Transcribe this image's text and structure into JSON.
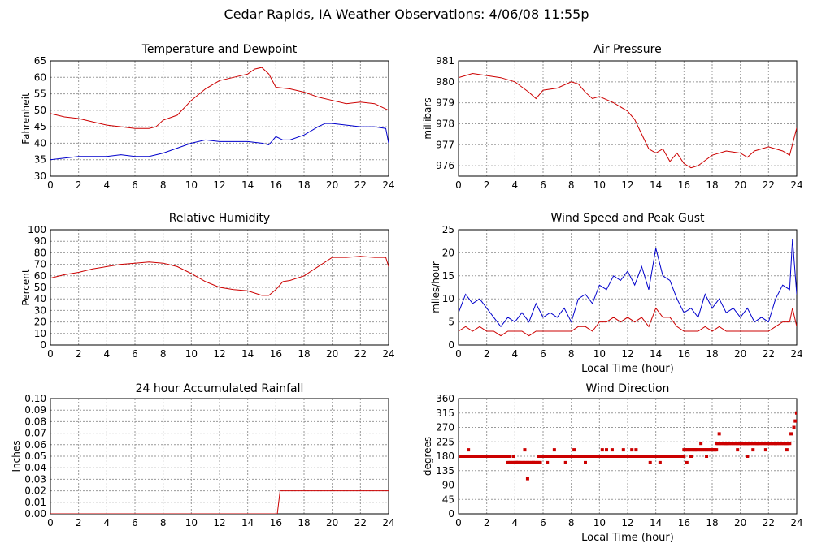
{
  "title": "Cedar Rapids, IA Weather Observations: 4/06/08 11:55p",
  "colors": {
    "red": "#cc0000",
    "blue": "#0000cc",
    "grid": "#999999"
  },
  "chart_data": [
    {
      "id": "temp",
      "type": "line",
      "title": "Temperature and Dewpoint",
      "xlabel": "",
      "ylabel": "Fahrenheit",
      "xlim": [
        0,
        24
      ],
      "ylim": [
        30,
        65
      ],
      "xticks": [
        0,
        2,
        4,
        6,
        8,
        10,
        12,
        14,
        16,
        18,
        20,
        22,
        24
      ],
      "yticks": [
        30,
        35,
        40,
        45,
        50,
        55,
        60,
        65
      ],
      "grid": true,
      "series": [
        {
          "color": "#cc0000",
          "x": [
            0,
            1,
            2,
            3,
            4,
            5,
            6,
            7,
            7.5,
            8,
            9,
            10,
            11,
            12,
            13,
            14,
            14.5,
            15,
            15.5,
            16,
            17,
            18,
            19,
            20,
            21,
            22,
            23,
            24
          ],
          "y": [
            49,
            48,
            47.5,
            46.5,
            45.5,
            45,
            44.5,
            44.5,
            45,
            47,
            48.5,
            53,
            56.5,
            59,
            60,
            61,
            62.5,
            63,
            61,
            57,
            56.5,
            55.5,
            54,
            53,
            52,
            52.5,
            52,
            50
          ]
        },
        {
          "color": "#0000cc",
          "x": [
            0,
            1,
            2,
            3,
            4,
            5,
            6,
            7,
            8,
            9,
            10,
            11,
            12,
            13,
            14,
            15,
            15.5,
            16,
            16.5,
            17,
            18,
            19,
            19.5,
            20,
            21,
            22,
            23,
            23.8,
            24
          ],
          "y": [
            35,
            35.5,
            36,
            36,
            36,
            36.5,
            36,
            36,
            37,
            38.5,
            40,
            41,
            40.5,
            40.5,
            40.5,
            40,
            39.5,
            42,
            41,
            41,
            42.5,
            45,
            46,
            46,
            45.5,
            45,
            45,
            44.5,
            40
          ]
        }
      ]
    },
    {
      "id": "pressure",
      "type": "line",
      "title": "Air Pressure",
      "xlabel": "",
      "ylabel": "millibars",
      "xlim": [
        0,
        24
      ],
      "ylim": [
        975.5,
        981
      ],
      "xticks": [
        0,
        2,
        4,
        6,
        8,
        10,
        12,
        14,
        16,
        18,
        20,
        22,
        24
      ],
      "yticks": [
        976,
        977,
        978,
        979,
        980,
        981
      ],
      "grid": true,
      "series": [
        {
          "color": "#cc0000",
          "x": [
            0,
            1,
            2,
            3,
            4,
            5,
            5.5,
            6,
            7,
            8,
            8.5,
            9,
            9.5,
            10,
            11,
            12,
            12.5,
            13,
            13.5,
            14,
            14.5,
            15,
            15.5,
            16,
            16.5,
            17,
            18,
            19,
            20,
            20.5,
            21,
            22,
            23,
            23.5,
            24
          ],
          "y": [
            980.2,
            980.4,
            980.3,
            980.2,
            980.0,
            979.5,
            979.2,
            979.6,
            979.7,
            980.0,
            979.9,
            979.5,
            979.2,
            979.3,
            979.0,
            978.6,
            978.2,
            977.5,
            976.8,
            976.6,
            976.8,
            976.2,
            976.6,
            976.1,
            975.9,
            976.0,
            976.5,
            976.7,
            976.6,
            976.4,
            976.7,
            976.9,
            976.7,
            976.5,
            977.8
          ]
        }
      ]
    },
    {
      "id": "humidity",
      "type": "line",
      "title": "Relative Humidity",
      "xlabel": "",
      "ylabel": "Percent",
      "xlim": [
        0,
        24
      ],
      "ylim": [
        0,
        100
      ],
      "xticks": [
        0,
        2,
        4,
        6,
        8,
        10,
        12,
        14,
        16,
        18,
        20,
        22,
        24
      ],
      "yticks": [
        0,
        10,
        20,
        30,
        40,
        50,
        60,
        70,
        80,
        90,
        100
      ],
      "grid": true,
      "series": [
        {
          "color": "#cc0000",
          "x": [
            0,
            1,
            2,
            3,
            4,
            5,
            6,
            7,
            8,
            9,
            10,
            11,
            12,
            13,
            14,
            15,
            15.5,
            16,
            16.5,
            17,
            18,
            19,
            20,
            21,
            22,
            23,
            23.8,
            24
          ],
          "y": [
            58,
            61,
            63,
            66,
            68,
            70,
            71,
            72,
            71,
            68,
            62,
            55,
            50,
            48,
            47,
            43,
            43,
            48,
            55,
            56,
            60,
            68,
            76,
            76,
            77,
            76,
            76,
            68
          ]
        }
      ]
    },
    {
      "id": "wind",
      "type": "line",
      "title": "Wind Speed and Peak Gust",
      "xlabel": "Local Time (hour)",
      "ylabel": "miles/hour",
      "xlim": [
        0,
        24
      ],
      "ylim": [
        0,
        25
      ],
      "xticks": [
        0,
        2,
        4,
        6,
        8,
        10,
        12,
        14,
        16,
        18,
        20,
        22,
        24
      ],
      "yticks": [
        0,
        5,
        10,
        15,
        20,
        25
      ],
      "grid": true,
      "series": [
        {
          "color": "#0000cc",
          "x": [
            0,
            0.5,
            1,
            1.5,
            2,
            2.5,
            3,
            3.5,
            4,
            4.5,
            5,
            5.5,
            6,
            6.5,
            7,
            7.5,
            8,
            8.5,
            9,
            9.5,
            10,
            10.5,
            11,
            11.5,
            12,
            12.5,
            13,
            13.5,
            14,
            14.5,
            15,
            15.5,
            16,
            16.5,
            17,
            17.5,
            18,
            18.5,
            19,
            19.5,
            20,
            20.5,
            21,
            21.5,
            22,
            22.5,
            23,
            23.5,
            23.7,
            24
          ],
          "y": [
            7,
            11,
            9,
            10,
            8,
            6,
            4,
            6,
            5,
            7,
            5,
            9,
            6,
            7,
            6,
            8,
            5,
            10,
            11,
            9,
            13,
            12,
            15,
            14,
            16,
            13,
            17,
            12,
            21,
            15,
            14,
            10,
            7,
            8,
            6,
            11,
            8,
            10,
            7,
            8,
            6,
            8,
            5,
            6,
            5,
            10,
            13,
            12,
            23,
            11
          ]
        },
        {
          "color": "#cc0000",
          "x": [
            0,
            0.5,
            1,
            1.5,
            2,
            2.5,
            3,
            3.5,
            4,
            4.5,
            5,
            5.5,
            6,
            6.5,
            7,
            7.5,
            8,
            8.5,
            9,
            9.5,
            10,
            10.5,
            11,
            11.5,
            12,
            12.5,
            13,
            13.5,
            14,
            14.5,
            15,
            15.5,
            16,
            16.5,
            17,
            17.5,
            18,
            18.5,
            19,
            19.5,
            20,
            20.5,
            21,
            21.5,
            22,
            22.5,
            23,
            23.5,
            23.7,
            24
          ],
          "y": [
            3,
            4,
            3,
            4,
            3,
            3,
            2,
            3,
            3,
            3,
            2,
            3,
            3,
            3,
            3,
            3,
            3,
            4,
            4,
            3,
            5,
            5,
            6,
            5,
            6,
            5,
            6,
            4,
            8,
            6,
            6,
            4,
            3,
            3,
            3,
            4,
            3,
            4,
            3,
            3,
            3,
            3,
            3,
            3,
            3,
            4,
            5,
            5,
            8,
            4
          ]
        }
      ]
    },
    {
      "id": "rain",
      "type": "line",
      "title": "24 hour Accumulated Rainfall",
      "xlabel": "",
      "ylabel": "Inches",
      "xlim": [
        0,
        24
      ],
      "ylim": [
        0,
        0.1
      ],
      "xticks": [
        0,
        2,
        4,
        6,
        8,
        10,
        12,
        14,
        16,
        18,
        20,
        22,
        24
      ],
      "yticks": [
        0,
        0.01,
        0.02,
        0.03,
        0.04,
        0.05,
        0.06,
        0.07,
        0.08,
        0.09,
        0.1
      ],
      "ytick_labels": [
        "0.00",
        "0.01",
        "0.02",
        "0.03",
        "0.04",
        "0.05",
        "0.06",
        "0.07",
        "0.08",
        "0.09",
        "0.10"
      ],
      "grid": true,
      "series": [
        {
          "color": "#cc0000",
          "x": [
            0,
            16.1,
            16.3,
            24
          ],
          "y": [
            0,
            0,
            0.02,
            0.02
          ]
        }
      ]
    },
    {
      "id": "dir",
      "type": "scatter",
      "title": "Wind Direction",
      "xlabel": "Local Time (hour)",
      "ylabel": "degrees",
      "xlim": [
        0,
        24
      ],
      "ylim": [
        0,
        360
      ],
      "xticks": [
        0,
        2,
        4,
        6,
        8,
        10,
        12,
        14,
        16,
        18,
        20,
        22,
        24
      ],
      "yticks": [
        0,
        45,
        90,
        135,
        180,
        225,
        270,
        315,
        360
      ],
      "grid": true,
      "series": [
        {
          "color": "#cc0000",
          "segments": [
            [
              0,
              3.6,
              180
            ],
            [
              3.6,
              4.1,
              160
            ],
            [
              4.1,
              5.8,
              160
            ],
            [
              5.8,
              8.4,
              180
            ],
            [
              8.4,
              16,
              180
            ],
            [
              16,
              18.3,
              200
            ],
            [
              18.3,
              20.5,
              220
            ],
            [
              20.5,
              23.5,
              220
            ]
          ],
          "x": [
            0.7,
            3.5,
            3.9,
            4.2,
            4.7,
            4.9,
            5.3,
            5.7,
            6.3,
            6.8,
            7.2,
            7.6,
            7.9,
            8.2,
            8.6,
            9.0,
            10.2,
            10.5,
            10.9,
            11.3,
            11.7,
            12.3,
            12.6,
            13.3,
            13.6,
            14.0,
            14.3,
            15.8,
            16.2,
            16.5,
            16.8,
            17.2,
            17.6,
            18.2,
            18.5,
            19.0,
            19.8,
            20.3,
            20.5,
            20.9,
            21.2,
            21.8,
            22.5,
            23.3,
            23.6,
            23.8,
            23.9,
            24.0
          ],
          "y": [
            200,
            160,
            180,
            160,
            200,
            110,
            160,
            180,
            160,
            200,
            180,
            160,
            180,
            200,
            180,
            160,
            200,
            200,
            200,
            180,
            200,
            200,
            200,
            180,
            160,
            180,
            160,
            180,
            160,
            180,
            200,
            220,
            180,
            200,
            250,
            220,
            200,
            220,
            180,
            200,
            220,
            200,
            220,
            200,
            250,
            270,
            290,
            315
          ]
        }
      ]
    }
  ]
}
